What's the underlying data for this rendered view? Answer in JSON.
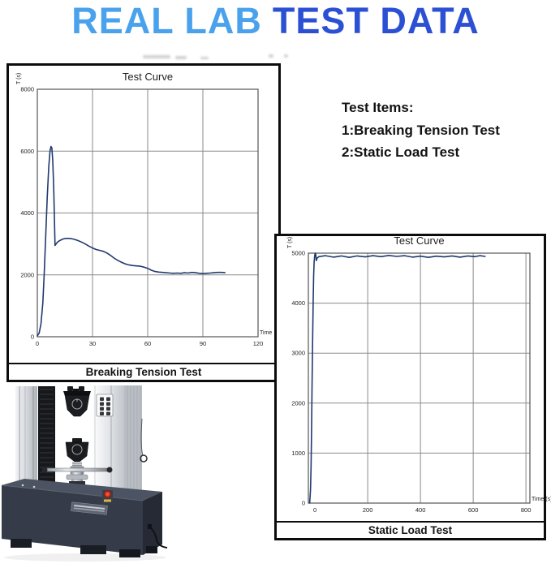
{
  "header": {
    "title_part1": "REAL LAB",
    "title_part2": "TEST DATA",
    "title_color1": "#4aa2ec",
    "title_color2": "#2b50d4"
  },
  "test_items": {
    "heading": "Test Items:",
    "items": [
      "1:Breaking Tension Test",
      "2:Static Load Test"
    ]
  },
  "machine": {
    "base_color": "#353b48",
    "column_color": "#d5d8dc",
    "emergency_stop_color": "#cf2d1b"
  },
  "chart_data": [
    {
      "type": "line",
      "title": "Test Curve",
      "ylabel": "T (s)",
      "xlabel": "Time",
      "caption": "Breaking Tension Test",
      "xlim": [
        0,
        120
      ],
      "ylim": [
        0,
        8000
      ],
      "xticks": [
        0,
        30,
        60,
        90,
        120
      ],
      "yticks": [
        0,
        2000,
        4000,
        6000,
        8000
      ],
      "x_gridlines": [
        30,
        60,
        90
      ],
      "y_gridlines": [
        2000,
        4000,
        6000
      ],
      "grid": true,
      "legend": false,
      "grid_color": "#8a8a8a",
      "axis_color": "#555555",
      "line_color": "#203a6e",
      "series": [
        {
          "name": "breaking-tension-curve",
          "points": [
            [
              0,
              30
            ],
            [
              1,
              120
            ],
            [
              2,
              420
            ],
            [
              3,
              1100
            ],
            [
              3.8,
              2100
            ],
            [
              4.6,
              3300
            ],
            [
              5.4,
              4500
            ],
            [
              6.2,
              5500
            ],
            [
              6.9,
              6000
            ],
            [
              7.4,
              6150
            ],
            [
              7.9,
              6100
            ],
            [
              8.4,
              5700
            ],
            [
              8.9,
              4800
            ],
            [
              9.3,
              3800
            ],
            [
              9.6,
              2950
            ],
            [
              10.2,
              3000
            ],
            [
              11,
              3060
            ],
            [
              12.5,
              3120
            ],
            [
              14,
              3160
            ],
            [
              15.5,
              3180
            ],
            [
              17,
              3180
            ],
            [
              18.5,
              3170
            ],
            [
              20,
              3150
            ],
            [
              22,
              3110
            ],
            [
              24,
              3060
            ],
            [
              26,
              3000
            ],
            [
              28,
              2930
            ],
            [
              30,
              2870
            ],
            [
              32,
              2820
            ],
            [
              34,
              2790
            ],
            [
              36,
              2760
            ],
            [
              38,
              2700
            ],
            [
              40,
              2620
            ],
            [
              42,
              2530
            ],
            [
              44,
              2460
            ],
            [
              46,
              2400
            ],
            [
              48,
              2350
            ],
            [
              50,
              2320
            ],
            [
              52,
              2300
            ],
            [
              54,
              2290
            ],
            [
              56,
              2280
            ],
            [
              58,
              2250
            ],
            [
              60,
              2210
            ],
            [
              62,
              2150
            ],
            [
              64,
              2110
            ],
            [
              66,
              2090
            ],
            [
              68,
              2080
            ],
            [
              70,
              2070
            ],
            [
              72,
              2060
            ],
            [
              74,
              2050
            ],
            [
              76,
              2060
            ],
            [
              78,
              2050
            ],
            [
              80,
              2070
            ],
            [
              82,
              2060
            ],
            [
              84,
              2080
            ],
            [
              86,
              2070
            ],
            [
              88,
              2050
            ],
            [
              90,
              2040
            ],
            [
              92,
              2050
            ],
            [
              94,
              2060
            ],
            [
              96,
              2070
            ],
            [
              98,
              2080
            ],
            [
              100,
              2080
            ],
            [
              102,
              2070
            ]
          ]
        }
      ]
    },
    {
      "type": "line",
      "title": "Test Curve",
      "ylabel": "T (s)",
      "xlabel": "Time (s)",
      "caption": "Static Load Test",
      "xlim": [
        -25,
        815
      ],
      "ylim": [
        0,
        5000
      ],
      "xticks": [
        0,
        200,
        400,
        600,
        800
      ],
      "yticks": [
        0,
        1000,
        2000,
        3000,
        4000,
        5000
      ],
      "x_gridlines": [
        200,
        400,
        600,
        800
      ],
      "y_gridlines": [
        1000,
        2000,
        3000,
        4000
      ],
      "grid": true,
      "legend": false,
      "grid_color": "#8a8a8a",
      "axis_color": "#555555",
      "line_color": "#203a6e",
      "series": [
        {
          "name": "static-load-curve",
          "points": [
            [
              -20,
              0
            ],
            [
              -17,
              250
            ],
            [
              -15,
              700
            ],
            [
              -13,
              1400
            ],
            [
              -11,
              2300
            ],
            [
              -9,
              3200
            ],
            [
              -7,
              4000
            ],
            [
              -5,
              4550
            ],
            [
              -3,
              4820
            ],
            [
              -1,
              4950
            ],
            [
              1,
              5000
            ],
            [
              3,
              4980
            ],
            [
              5,
              4850
            ],
            [
              8,
              4900
            ],
            [
              15,
              4930
            ],
            [
              40,
              4950
            ],
            [
              70,
              4920
            ],
            [
              100,
              4945
            ],
            [
              130,
              4915
            ],
            [
              160,
              4945
            ],
            [
              190,
              4925
            ],
            [
              220,
              4950
            ],
            [
              250,
              4930
            ],
            [
              280,
              4955
            ],
            [
              310,
              4935
            ],
            [
              340,
              4950
            ],
            [
              370,
              4920
            ],
            [
              400,
              4940
            ],
            [
              430,
              4915
            ],
            [
              460,
              4940
            ],
            [
              490,
              4925
            ],
            [
              520,
              4945
            ],
            [
              550,
              4920
            ],
            [
              580,
              4945
            ],
            [
              605,
              4930
            ],
            [
              625,
              4950
            ],
            [
              645,
              4935
            ]
          ]
        }
      ]
    }
  ]
}
